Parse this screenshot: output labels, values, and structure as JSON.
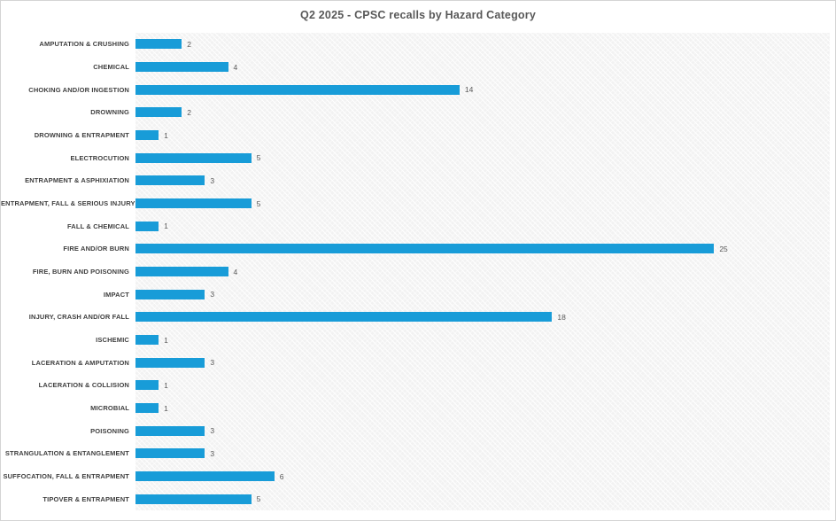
{
  "chart_data": {
    "type": "bar",
    "orientation": "horizontal",
    "title": "Q2 2025 - CPSC recalls by Hazard Category",
    "categories": [
      "AMPUTATION & CRUSHING",
      "CHEMICAL",
      "CHOKING AND/OR INGESTION",
      "DROWNING",
      "DROWNING & ENTRAPMENT",
      "ELECTROCUTION",
      "ENTRAPMENT & ASPHIXIATION",
      "ENTRAPMENT, FALL & SERIOUS INJURY",
      "FALL & CHEMICAL",
      "FIRE AND/OR BURN",
      "FIRE, BURN AND POISONING",
      "IMPACT",
      "INJURY, CRASH AND/OR FALL",
      "ISCHEMIC",
      "LACERATION & AMPUTATION",
      "LACERATION & COLLISION",
      "MICROBIAL",
      "POISONING",
      "STRANGULATION & ENTANGLEMENT",
      "SUFFOCATION, FALL & ENTRAPMENT",
      "TIPOVER & ENTRAPMENT"
    ],
    "values": [
      2,
      4,
      14,
      2,
      1,
      5,
      3,
      5,
      1,
      25,
      4,
      3,
      18,
      1,
      3,
      1,
      1,
      3,
      3,
      6,
      5
    ],
    "xlim": [
      0,
      30
    ],
    "xlabel": "",
    "ylabel": "",
    "grid": false,
    "legend": false,
    "data_labels": true,
    "colors": {
      "bar": "#189CD8",
      "title": "#595959",
      "category_label": "#3f3f3f",
      "value_label": "#595959",
      "plot_background": "#f2f2f2",
      "page_background": "#ffffff",
      "border": "#d4d4d4"
    }
  }
}
